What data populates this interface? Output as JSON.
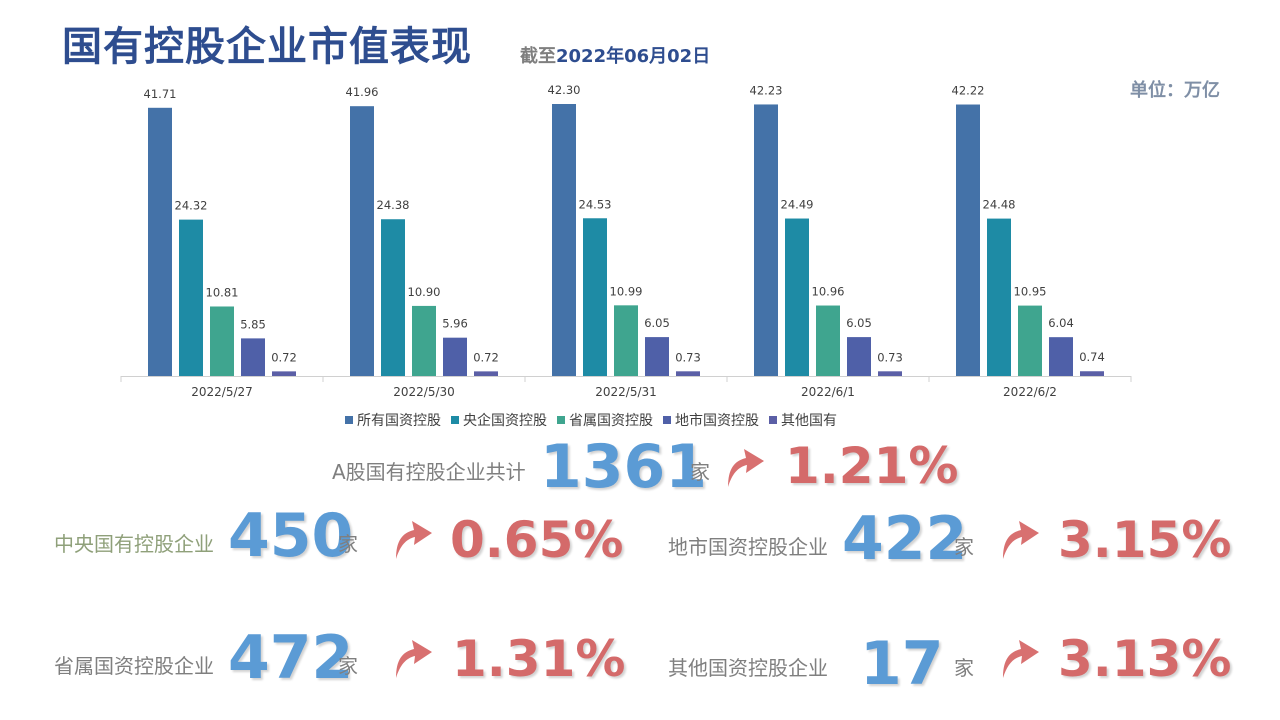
{
  "header": {
    "title": "国有控股企业市值表现",
    "subtitle_prefix": "截至",
    "subtitle_date": "2022年06月02日",
    "unit": "单位：万亿"
  },
  "chart_data": {
    "type": "bar",
    "categories": [
      "2022/5/27",
      "2022/5/30",
      "2022/5/31",
      "2022/6/1",
      "2022/6/2"
    ],
    "series": [
      {
        "name": "所有国资控股",
        "color": "#4472A8",
        "values": [
          41.71,
          41.96,
          42.3,
          42.23,
          42.22
        ]
      },
      {
        "name": "央企国资控股",
        "color": "#1E8BA5",
        "values": [
          24.32,
          24.38,
          24.53,
          24.49,
          24.48
        ]
      },
      {
        "name": "省属国资控股",
        "color": "#3FA58F",
        "values": [
          10.81,
          10.9,
          10.99,
          10.96,
          10.95
        ]
      },
      {
        "name": "地市国资控股",
        "color": "#4F60A8",
        "values": [
          5.85,
          5.96,
          6.05,
          6.05,
          6.04
        ]
      },
      {
        "name": "其他国有",
        "color": "#5B5FA6",
        "values": [
          0.72,
          0.72,
          0.73,
          0.73,
          0.74
        ]
      }
    ],
    "ylim": [
      0,
      42.3
    ],
    "grid": false,
    "legend": "bottom"
  },
  "stats": {
    "total": {
      "label": "A股国有控股企业共计",
      "count": "1361",
      "unit": "家",
      "change": "1.21%"
    },
    "central": {
      "label": "中央国有控股企业",
      "count": "450",
      "unit": "家",
      "change": "0.65%"
    },
    "city": {
      "label": "地市国资控股企业",
      "count": "422",
      "unit": "家",
      "change": "3.15%"
    },
    "province": {
      "label": "省属国资控股企业",
      "count": "472",
      "unit": "家",
      "change": "1.31%"
    },
    "other": {
      "label": "其他国资控股企业",
      "count": "17",
      "unit": "家",
      "change": "3.13%"
    }
  },
  "colors": {
    "title": "#2E4D8F",
    "number": "#5B9BD5",
    "change": "#D46A6A",
    "arrow": "#D87070"
  }
}
